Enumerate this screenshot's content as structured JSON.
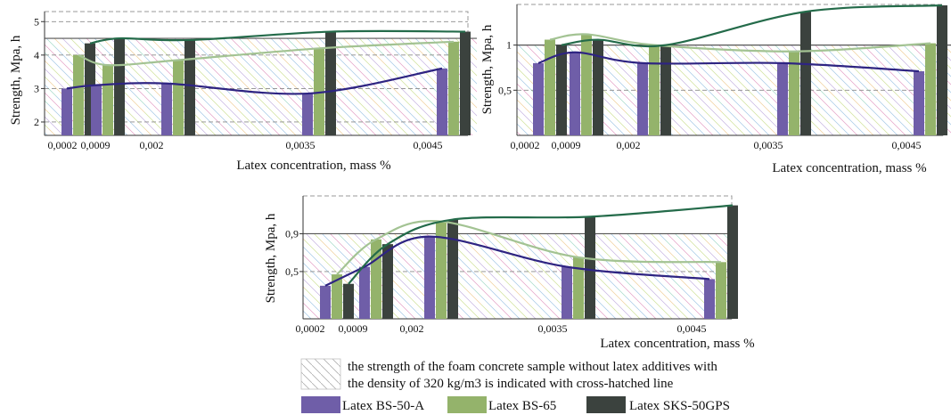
{
  "chart_data": [
    {
      "type": "bar",
      "categories": [
        "0,0002",
        "0,0009",
        "0,002",
        "0,0035",
        "0,0045"
      ],
      "x": [
        0.0002,
        0.0009,
        0.002,
        0.0035,
        0.0045
      ],
      "yticks": [
        "2",
        "3",
        "4",
        "5"
      ],
      "ylim": [
        1.6,
        5.3
      ],
      "reference_value": 4.5,
      "xlabel": "Latex concentration, mass %",
      "ylabel": "Strength, Mpa, h",
      "series": [
        {
          "name": "Latex BS-50-A",
          "values": [
            3.0,
            3.1,
            3.15,
            2.85,
            3.6
          ]
        },
        {
          "name": "Latex BS-65",
          "values": [
            4.0,
            3.7,
            3.85,
            4.2,
            4.4
          ]
        },
        {
          "name": "Latex SKS-50GPS",
          "values": [
            4.35,
            4.5,
            4.45,
            4.7,
            4.7
          ]
        }
      ]
    },
    {
      "type": "bar",
      "categories": [
        "0,0002",
        "0,0009",
        "0,002",
        "0,0035",
        "0,0045"
      ],
      "x": [
        0.0002,
        0.0009,
        0.002,
        0.0035,
        0.0045
      ],
      "yticks": [
        "0,5",
        "1"
      ],
      "ylim": [
        0.0,
        1.45
      ],
      "reference_value": 1.0,
      "xlabel": "Latex concentration, mass %",
      "ylabel": "Strength, Mpa, h",
      "series": [
        {
          "name": "Latex BS-50-A",
          "values": [
            0.8,
            0.92,
            0.8,
            0.8,
            0.71
          ]
        },
        {
          "name": "Latex BS-65",
          "values": [
            1.06,
            1.12,
            1.0,
            0.93,
            1.02
          ]
        },
        {
          "name": "Latex SKS-50GPS",
          "values": [
            1.0,
            1.06,
            1.0,
            1.37,
            1.44
          ]
        }
      ]
    },
    {
      "type": "bar",
      "categories": [
        "0,0002",
        "0,0009",
        "0,002",
        "0,0035",
        "0,0045"
      ],
      "x": [
        0.0002,
        0.0009,
        0.002,
        0.0035,
        0.0045
      ],
      "yticks": [
        "0,5",
        "0,9"
      ],
      "ylim": [
        0.0,
        1.3
      ],
      "reference_value": 0.9,
      "xlabel": "Latex concentration, mass %",
      "ylabel": "Strength, Mpa, h",
      "series": [
        {
          "name": "Latex BS-50-A",
          "values": [
            0.35,
            0.55,
            0.87,
            0.55,
            0.42
          ]
        },
        {
          "name": "Latex BS-65",
          "values": [
            0.47,
            0.84,
            1.03,
            0.65,
            0.6
          ]
        },
        {
          "name": "Latex SKS-50GPS",
          "values": [
            0.37,
            0.79,
            1.05,
            1.08,
            1.2
          ]
        }
      ]
    }
  ],
  "legend": {
    "hatch_note_line1": "the strength of the foam concrete sample without latex additives with",
    "hatch_note_line2": "the density of 320 kg/m3 is indicated with cross-hatched line",
    "items": [
      "Latex BS-50-A",
      "Latex BS-65",
      "Latex SKS-50GPS"
    ]
  },
  "colors": {
    "BS-50-A": "#6f5ea8",
    "BS-65": "#94b36b",
    "SKS-50GPS": "#3b423e",
    "BS-50-A_line": "#2e2482",
    "BS-65_line": "#a3c393",
    "SKS-50GPS_line": "#246b4a"
  }
}
